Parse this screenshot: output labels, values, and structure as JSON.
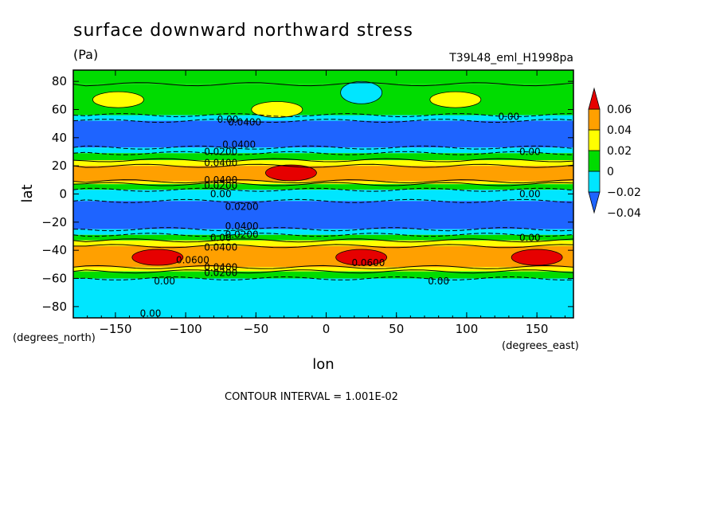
{
  "header": {
    "title": "surface downward northward stress",
    "units": "(Pa)",
    "run_id": "T39L48_eml_H1998pa"
  },
  "footer": {
    "contour_interval": "CONTOUR INTERVAL = 1.001E-02"
  },
  "chart_data": {
    "type": "heatmap",
    "title": "surface downward northward stress",
    "units": "(Pa)",
    "xlabel": "lon",
    "ylabel": "lat",
    "x_units_label": "(degrees_east)",
    "y_units_label": "(degrees_north)",
    "xlim": [
      -180,
      176
    ],
    "ylim": [
      -88,
      88
    ],
    "x_ticks": [
      -150,
      -100,
      -50,
      0,
      50,
      100,
      150
    ],
    "y_ticks": [
      -80,
      -60,
      -40,
      -20,
      0,
      20,
      40,
      60,
      80
    ],
    "x_tick_labels": [
      "−150",
      "−100",
      "−50",
      "0",
      "50",
      "100",
      "150"
    ],
    "y_tick_labels": [
      "−80",
      "−60",
      "−40",
      "−20",
      "0",
      "20",
      "40",
      "60",
      "80"
    ],
    "colorbar": {
      "labels": [
        "0.06",
        "0.04",
        "0.02",
        "0",
        "−0.02",
        "−0.04"
      ],
      "levels": [
        -0.04,
        -0.02,
        0,
        0.02,
        0.04,
        0.06
      ],
      "colors": [
        "#1e64ff",
        "#00e6ff",
        "#00dc00",
        "#ffff00",
        "#ffa000",
        "#e60000"
      ]
    },
    "zonal_bands": [
      {
        "lat": [
          78,
          88
        ],
        "value": 0.005,
        "color": "#00dc00"
      },
      {
        "lat": [
          56,
          78
        ],
        "value": 0.005,
        "color": "#00dc00"
      },
      {
        "lat": [
          52,
          56
        ],
        "value": -0.01,
        "color": "#00e6ff"
      },
      {
        "lat": [
          33,
          52
        ],
        "value": -0.03,
        "color": "#1e64ff"
      },
      {
        "lat": [
          29,
          33
        ],
        "value": -0.01,
        "color": "#00e6ff"
      },
      {
        "lat": [
          24,
          29
        ],
        "value": 0.01,
        "color": "#00dc00"
      },
      {
        "lat": [
          20,
          24
        ],
        "value": 0.03,
        "color": "#ffff00"
      },
      {
        "lat": [
          9,
          20
        ],
        "value": 0.045,
        "color": "#ffa000"
      },
      {
        "lat": [
          7,
          9
        ],
        "value": 0.03,
        "color": "#ffff00"
      },
      {
        "lat": [
          3,
          7
        ],
        "value": 0.01,
        "color": "#00dc00"
      },
      {
        "lat": [
          -5,
          3
        ],
        "value": -0.01,
        "color": "#00e6ff"
      },
      {
        "lat": [
          -25,
          -5
        ],
        "value": -0.03,
        "color": "#1e64ff"
      },
      {
        "lat": [
          -29,
          -25
        ],
        "value": -0.01,
        "color": "#00e6ff"
      },
      {
        "lat": [
          -33,
          -29
        ],
        "value": 0.01,
        "color": "#00dc00"
      },
      {
        "lat": [
          -37,
          -33
        ],
        "value": 0.03,
        "color": "#ffff00"
      },
      {
        "lat": [
          -52,
          -37
        ],
        "value": 0.05,
        "color": "#ffa000"
      },
      {
        "lat": [
          -55,
          -52
        ],
        "value": 0.03,
        "color": "#ffff00"
      },
      {
        "lat": [
          -60,
          -55
        ],
        "value": 0.01,
        "color": "#00dc00"
      },
      {
        "lat": [
          -88,
          -60
        ],
        "value": -0.01,
        "color": "#00e6ff"
      }
    ],
    "features": [
      {
        "kind": "max",
        "lon": -35,
        "lat": 60,
        "value": 0.03,
        "color": "#ffff00"
      },
      {
        "kind": "max",
        "lon": -148,
        "lat": 67,
        "value": 0.03,
        "color": "#ffff00"
      },
      {
        "kind": "max",
        "lon": 92,
        "lat": 67,
        "value": 0.03,
        "color": "#ffff00"
      },
      {
        "kind": "min",
        "lon": 25,
        "lat": 72,
        "value": -0.01,
        "color": "#00e6ff"
      },
      {
        "kind": "max",
        "lon": -25,
        "lat": 15,
        "value": 0.065,
        "color": "#e60000"
      },
      {
        "kind": "max",
        "lon": -120,
        "lat": -45,
        "value": 0.065,
        "color": "#e60000"
      },
      {
        "kind": "max",
        "lon": 25,
        "lat": -45,
        "value": 0.065,
        "color": "#e60000"
      },
      {
        "kind": "max",
        "lon": 150,
        "lat": -45,
        "value": 0.065,
        "color": "#e60000"
      }
    ],
    "contour_labels": [
      {
        "lon": -70,
        "lat": 53,
        "text": "0.00"
      },
      {
        "lon": -58,
        "lat": 51,
        "text": "0.0400"
      },
      {
        "lon": -62,
        "lat": 35,
        "text": "0.0400"
      },
      {
        "lon": -75,
        "lat": 30,
        "text": "0.0200"
      },
      {
        "lon": -75,
        "lat": 22,
        "text": "0.0400"
      },
      {
        "lon": -75,
        "lat": 10,
        "text": "0.0400"
      },
      {
        "lon": -75,
        "lat": 6,
        "text": "0.0200"
      },
      {
        "lon": -75,
        "lat": 0,
        "text": "0.00"
      },
      {
        "lon": -60,
        "lat": -9,
        "text": "0.0200"
      },
      {
        "lon": -60,
        "lat": -23,
        "text": "0.0400"
      },
      {
        "lon": -60,
        "lat": -29,
        "text": "0.0200"
      },
      {
        "lon": -75,
        "lat": -31,
        "text": "0.00"
      },
      {
        "lon": -75,
        "lat": -38,
        "text": "0.0400"
      },
      {
        "lon": -95,
        "lat": -47,
        "text": "0.0600"
      },
      {
        "lon": -75,
        "lat": -52,
        "text": "0.0400"
      },
      {
        "lon": -75,
        "lat": -56,
        "text": "0.0200"
      },
      {
        "lon": -115,
        "lat": -62,
        "text": "0.00"
      },
      {
        "lon": 30,
        "lat": -49,
        "text": "0.0600"
      },
      {
        "lon": 80,
        "lat": -62,
        "text": "0.00"
      },
      {
        "lon": -125,
        "lat": -85,
        "text": "0.00"
      },
      {
        "lon": 130,
        "lat": 55,
        "text": "0.00"
      },
      {
        "lon": 145,
        "lat": 30,
        "text": "0.00"
      },
      {
        "lon": 145,
        "lat": 0,
        "text": "0.00"
      },
      {
        "lon": 145,
        "lat": -31,
        "text": "0.00"
      }
    ]
  }
}
